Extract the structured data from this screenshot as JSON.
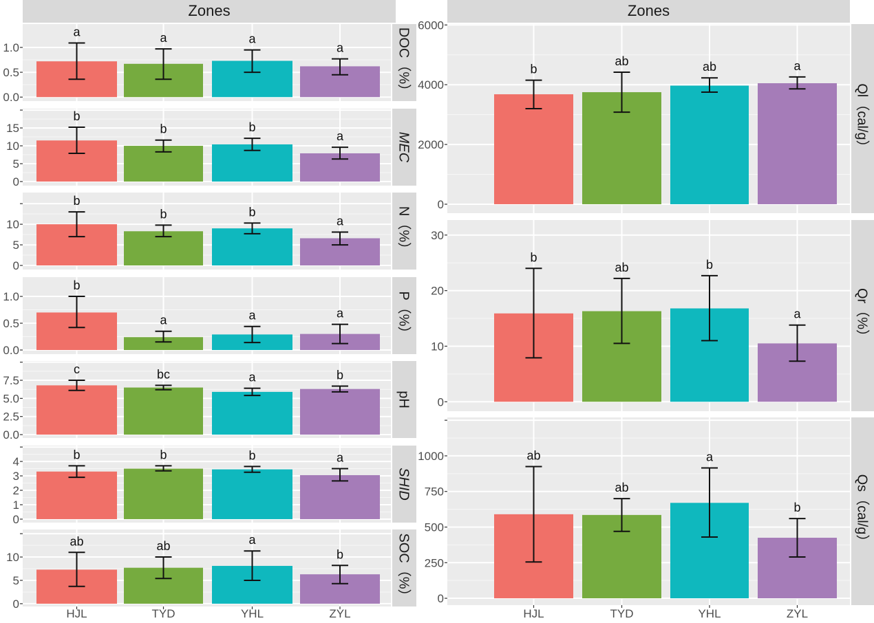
{
  "chart_data": [
    {
      "type": "bar",
      "facet_header": "Zones",
      "categories": [
        "HJL",
        "TYD",
        "YHL",
        "ZYL"
      ],
      "colors": [
        "#f07068",
        "#76ab3f",
        "#0fb8be",
        "#a57cb8"
      ],
      "grid": true,
      "panels": [
        {
          "strip": "DOC（%）",
          "italic": false,
          "ylim": [
            -0.08,
            1.47
          ],
          "ticks": [
            0,
            0.5,
            1.0
          ],
          "tick_labels": [
            "0.0",
            "0.5",
            "1.0"
          ],
          "values": [
            0.72,
            0.67,
            0.73,
            0.62
          ],
          "err_low": [
            0.36,
            0.36,
            0.5,
            0.45
          ],
          "err_high": [
            1.09,
            0.97,
            0.95,
            0.77
          ],
          "letters": [
            "a",
            "a",
            "a",
            "a"
          ]
        },
        {
          "strip": "MEC",
          "italic": true,
          "ylim": [
            -1.15,
            20.4
          ],
          "ticks": [
            0,
            5,
            10,
            15,
            20
          ],
          "tick_labels": [
            "0",
            "5",
            "10",
            "15",
            ""
          ],
          "values": [
            11.5,
            10.0,
            10.4,
            7.9
          ],
          "err_low": [
            7.9,
            8.3,
            8.7,
            6.3
          ],
          "err_high": [
            15.2,
            11.6,
            12.1,
            9.6
          ],
          "letters": [
            "b",
            "b",
            "b",
            "a"
          ]
        },
        {
          "strip": "N（%）",
          "italic": false,
          "ylim": [
            -1,
            17.7
          ],
          "ticks": [
            0,
            5,
            10,
            15
          ],
          "tick_labels": [
            "0",
            "5",
            "10",
            ""
          ],
          "values": [
            10.0,
            8.3,
            9.0,
            6.6
          ],
          "err_low": [
            7.0,
            7.0,
            7.7,
            5.0
          ],
          "err_high": [
            13.0,
            9.8,
            10.3,
            8.1
          ],
          "letters": [
            "b",
            "b",
            "b",
            "a"
          ]
        },
        {
          "strip": "P（%）",
          "italic": false,
          "ylim": [
            -0.077,
            1.36
          ],
          "ticks": [
            0,
            0.5,
            1.0
          ],
          "tick_labels": [
            "0.0",
            "0.5",
            "1.0"
          ],
          "values": [
            0.7,
            0.24,
            0.29,
            0.3
          ],
          "err_low": [
            0.42,
            0.15,
            0.14,
            0.12
          ],
          "err_high": [
            1.0,
            0.35,
            0.44,
            0.48
          ],
          "letters": [
            "b",
            "a",
            "a",
            "a"
          ]
        },
        {
          "strip": "pH",
          "italic": false,
          "ylim": [
            -0.47,
            10.16
          ],
          "ticks": [
            0,
            2.5,
            5,
            7.5,
            10
          ],
          "tick_labels": [
            "0.0",
            "2.5",
            "5.0",
            "7.5",
            ""
          ],
          "values": [
            6.8,
            6.5,
            5.9,
            6.3
          ],
          "err_low": [
            6.1,
            6.2,
            5.4,
            5.9
          ],
          "err_high": [
            7.5,
            6.8,
            6.4,
            6.7
          ],
          "letters": [
            "c",
            "bc",
            "a",
            "b"
          ]
        },
        {
          "strip": "SHID",
          "italic": true,
          "ylim": [
            -0.24,
            5.1
          ],
          "ticks": [
            0,
            1,
            2,
            3,
            4,
            5
          ],
          "tick_labels": [
            "0",
            "1",
            "2",
            "3",
            "4",
            ""
          ],
          "values": [
            3.3,
            3.5,
            3.45,
            3.05
          ],
          "err_low": [
            2.9,
            3.35,
            3.25,
            2.65
          ],
          "err_high": [
            3.7,
            3.7,
            3.65,
            3.5
          ],
          "letters": [
            "b",
            "b",
            "b",
            "a"
          ]
        },
        {
          "strip": "SOC（%）",
          "italic": false,
          "ylim": [
            -0.6,
            15.9
          ],
          "ticks": [
            0,
            5,
            10,
            15
          ],
          "tick_labels": [
            "0",
            "5",
            "10",
            ""
          ],
          "values": [
            7.3,
            7.7,
            8.1,
            6.3
          ],
          "err_low": [
            3.7,
            5.4,
            5.0,
            4.3
          ],
          "err_high": [
            11.0,
            10.0,
            11.3,
            8.2
          ],
          "letters": [
            "ab",
            "ab",
            "a",
            "b"
          ]
        }
      ]
    },
    {
      "type": "bar",
      "facet_header": "Zones",
      "categories": [
        "HJL",
        "TYD",
        "YHL",
        "ZYL"
      ],
      "colors": [
        "#f07068",
        "#76ab3f",
        "#0fb8be",
        "#a57cb8"
      ],
      "grid": true,
      "panels": [
        {
          "strip": "Ql（cal/g）",
          "italic": false,
          "ylim": [
            -300,
            6030
          ],
          "ticks": [
            0,
            2000,
            4000,
            6000
          ],
          "tick_labels": [
            "0",
            "2000",
            "4000",
            "6000"
          ],
          "values": [
            3680,
            3750,
            3970,
            4050
          ],
          "err_low": [
            3200,
            3080,
            3750,
            3860
          ],
          "err_high": [
            4150,
            4420,
            4230,
            4260
          ],
          "letters": [
            "b",
            "ab",
            "ab",
            "a"
          ]
        },
        {
          "strip": "Qr（%）",
          "italic": false,
          "ylim": [
            -1.7,
            32.7
          ],
          "ticks": [
            0,
            10,
            20,
            30
          ],
          "tick_labels": [
            "0",
            "10",
            "20",
            "30"
          ],
          "values": [
            15.9,
            16.3,
            16.8,
            10.5
          ],
          "err_low": [
            7.9,
            10.5,
            11.0,
            7.3
          ],
          "err_high": [
            24.0,
            22.2,
            22.7,
            13.8
          ],
          "letters": [
            "b",
            "ab",
            "b",
            "a"
          ]
        },
        {
          "strip": "Qs（cal/g）",
          "italic": false,
          "ylim": [
            -48,
            1270
          ],
          "ticks": [
            0,
            250,
            500,
            750,
            1000,
            1250
          ],
          "tick_labels": [
            "0",
            "250",
            "500",
            "750",
            "1000",
            ""
          ],
          "values": [
            590,
            585,
            670,
            425
          ],
          "err_low": [
            255,
            470,
            430,
            290
          ],
          "err_high": [
            925,
            700,
            915,
            560
          ],
          "letters": [
            "ab",
            "ab",
            "a",
            "b"
          ]
        }
      ]
    }
  ]
}
